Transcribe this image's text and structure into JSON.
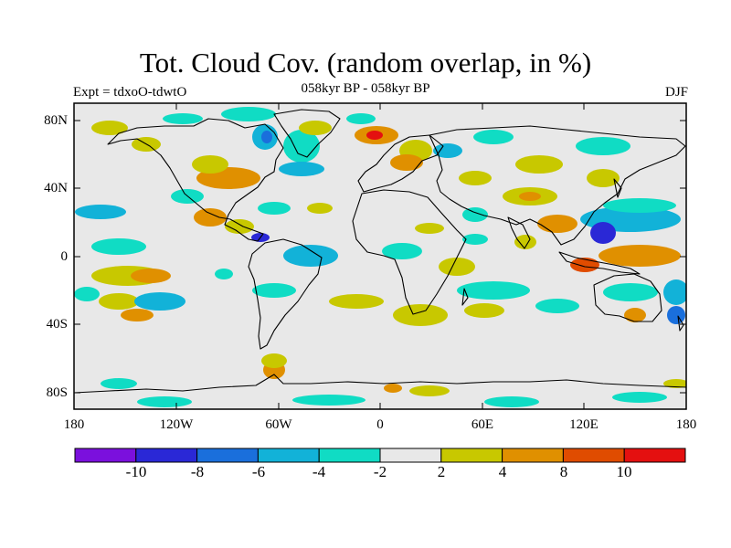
{
  "title": "Tot. Cloud Cov. (random overlap, in %)",
  "subtitle": "058kyr BP - 058kyr BP",
  "left_label": "Expt = tdxoO-tdwtO",
  "right_label": "DJF",
  "lat_labels": [
    "80N",
    "40N",
    "0",
    "40S",
    "80S"
  ],
  "lon_labels": [
    "180",
    "120W",
    "60W",
    "0",
    "60E",
    "120E",
    "180"
  ],
  "colorbar": {
    "labels": [
      "-10",
      "-8",
      "-6",
      "-4",
      "-2",
      "2",
      "4",
      "8",
      "10"
    ],
    "colors": [
      "#7b10dd",
      "#2a28d6",
      "#1a6fdc",
      "#12b2d8",
      "#10dcc4",
      "#e8e8e8",
      "#c8c800",
      "#e09000",
      "#e04c00",
      "#e41010"
    ]
  },
  "map_background": "#e8e8e8"
}
